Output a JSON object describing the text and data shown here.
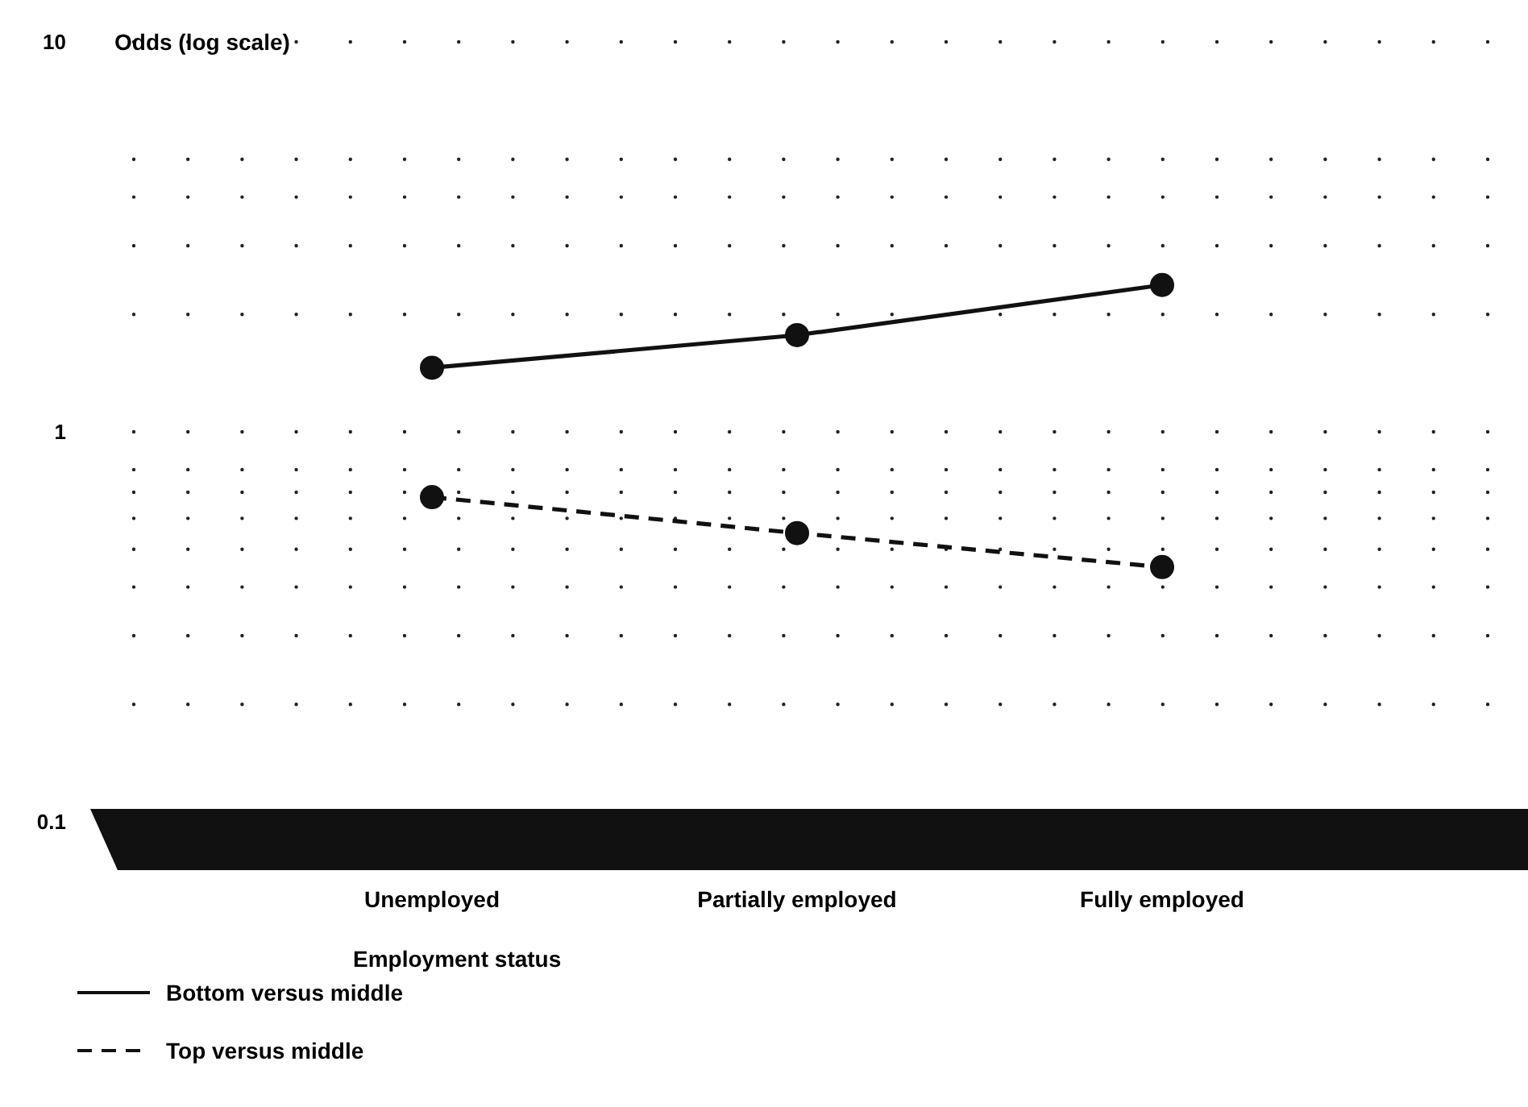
{
  "chart_data": {
    "type": "line",
    "xlabel": "Employment status",
    "ylabel": "Odds (log scale)",
    "categories": [
      "Unemployed",
      "Partially employed",
      "Fully employed"
    ],
    "log": true,
    "ylim": [
      0.1,
      10
    ],
    "yticks": [
      0.1,
      {
        "value": 0.2,
        "label": null
      },
      {
        "value": 0.3,
        "label": null
      },
      {
        "value": 0.4,
        "label": null
      },
      {
        "value": 0.5,
        "label": null
      },
      {
        "value": 0.6,
        "label": null
      },
      {
        "value": 0.7,
        "label": null
      },
      {
        "value": 0.8,
        "label": null
      },
      1,
      {
        "value": 2,
        "label": null
      },
      {
        "value": 3,
        "label": null
      },
      {
        "value": 4,
        "label": null
      },
      {
        "value": 5,
        "label": null
      },
      10
    ],
    "grid": "y",
    "legend": "bottom",
    "marker": "circle",
    "series": [
      {
        "name": "Bottom versus middle",
        "color": "#111111",
        "values": [
          1.46,
          1.77,
          2.38
        ],
        "line_style": "solid"
      },
      {
        "name": "Top versus middle",
        "color": "#111111",
        "values": [
          0.68,
          0.55,
          0.45
        ],
        "line_style": "dashed"
      }
    ]
  }
}
